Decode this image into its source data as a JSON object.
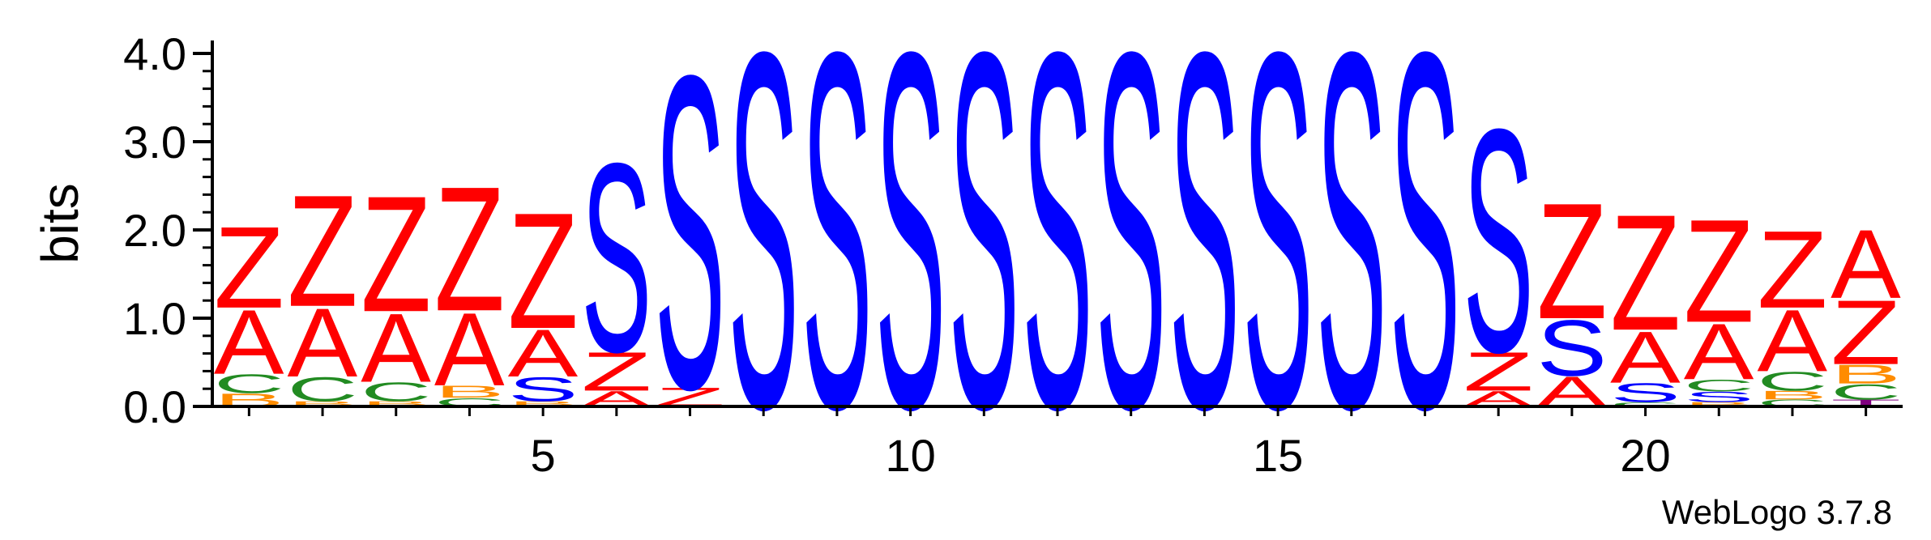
{
  "chart_data": {
    "type": "sequence-logo",
    "ylabel": "bits",
    "ylim": [
      0,
      4.0
    ],
    "y_ticks": [
      "0.0",
      "1.0",
      "2.0",
      "3.0",
      "4.0"
    ],
    "x_ticks": [
      "5",
      "10",
      "15",
      "20"
    ],
    "x_tick_positions": [
      5,
      10,
      15,
      20
    ],
    "credit": "WebLogo 3.7.8",
    "colors": {
      "S": "#0000ff",
      "Z": "#ff0000",
      "A": "#ff0000",
      "C": "#228b22",
      "B": "#ff8c00",
      "T": "#800080"
    },
    "positions": [
      {
        "pos": 1,
        "stack": [
          [
            "B",
            0.15
          ],
          [
            "C",
            0.22
          ],
          [
            "A",
            0.75
          ],
          [
            "Z",
            0.95
          ]
        ]
      },
      {
        "pos": 2,
        "stack": [
          [
            "B",
            0.06
          ],
          [
            "C",
            0.28
          ],
          [
            "A",
            0.8
          ],
          [
            "Z",
            1.3
          ]
        ]
      },
      {
        "pos": 3,
        "stack": [
          [
            "B",
            0.06
          ],
          [
            "C",
            0.22
          ],
          [
            "A",
            0.8
          ],
          [
            "Z",
            1.35
          ]
        ]
      },
      {
        "pos": 4,
        "stack": [
          [
            "C",
            0.1
          ],
          [
            "B",
            0.14
          ],
          [
            "A",
            0.85
          ],
          [
            "Z",
            1.45
          ]
        ]
      },
      {
        "pos": 5,
        "stack": [
          [
            "B",
            0.06
          ],
          [
            "S",
            0.28
          ],
          [
            "A",
            0.55
          ],
          [
            "Z",
            1.35
          ]
        ]
      },
      {
        "pos": 6,
        "stack": [
          [
            "A",
            0.18
          ],
          [
            "Z",
            0.45
          ],
          [
            "S",
            2.2
          ]
        ]
      },
      {
        "pos": 7,
        "stack": [
          [
            "Z",
            0.22
          ],
          [
            "S",
            3.65
          ]
        ]
      },
      {
        "pos": 8,
        "stack": [
          [
            "S",
            4.15
          ]
        ]
      },
      {
        "pos": 9,
        "stack": [
          [
            "S",
            4.15
          ]
        ]
      },
      {
        "pos": 10,
        "stack": [
          [
            "S",
            4.15
          ]
        ]
      },
      {
        "pos": 11,
        "stack": [
          [
            "S",
            4.15
          ]
        ]
      },
      {
        "pos": 12,
        "stack": [
          [
            "S",
            4.15
          ]
        ]
      },
      {
        "pos": 13,
        "stack": [
          [
            "S",
            4.15
          ]
        ]
      },
      {
        "pos": 14,
        "stack": [
          [
            "S",
            4.15
          ]
        ]
      },
      {
        "pos": 15,
        "stack": [
          [
            "S",
            4.15
          ]
        ]
      },
      {
        "pos": 16,
        "stack": [
          [
            "S",
            4.15
          ]
        ]
      },
      {
        "pos": 17,
        "stack": [
          [
            "S",
            4.15
          ]
        ]
      },
      {
        "pos": 18,
        "stack": [
          [
            "A",
            0.18
          ],
          [
            "Z",
            0.45
          ],
          [
            "S",
            2.6
          ]
        ]
      },
      {
        "pos": 19,
        "stack": [
          [
            "A",
            0.35
          ],
          [
            "S",
            0.65
          ],
          [
            "Z",
            1.35
          ]
        ]
      },
      {
        "pos": 20,
        "stack": [
          [
            "C",
            0.05
          ],
          [
            "S",
            0.22
          ],
          [
            "A",
            0.6
          ],
          [
            "Z",
            1.35
          ]
        ]
      },
      {
        "pos": 21,
        "stack": [
          [
            "B",
            0.05
          ],
          [
            "S",
            0.12
          ],
          [
            "C",
            0.14
          ],
          [
            "A",
            0.65
          ],
          [
            "Z",
            1.2
          ]
        ]
      },
      {
        "pos": 22,
        "stack": [
          [
            "C",
            0.08
          ],
          [
            "B",
            0.1
          ],
          [
            "C",
            0.22
          ],
          [
            "A",
            0.72
          ],
          [
            "Z",
            0.9
          ]
        ]
      },
      {
        "pos": 23,
        "stack": [
          [
            "T",
            0.08
          ],
          [
            "C",
            0.18
          ],
          [
            "B",
            0.22
          ],
          [
            "Z",
            0.75
          ],
          [
            "A",
            0.8
          ]
        ]
      }
    ]
  }
}
